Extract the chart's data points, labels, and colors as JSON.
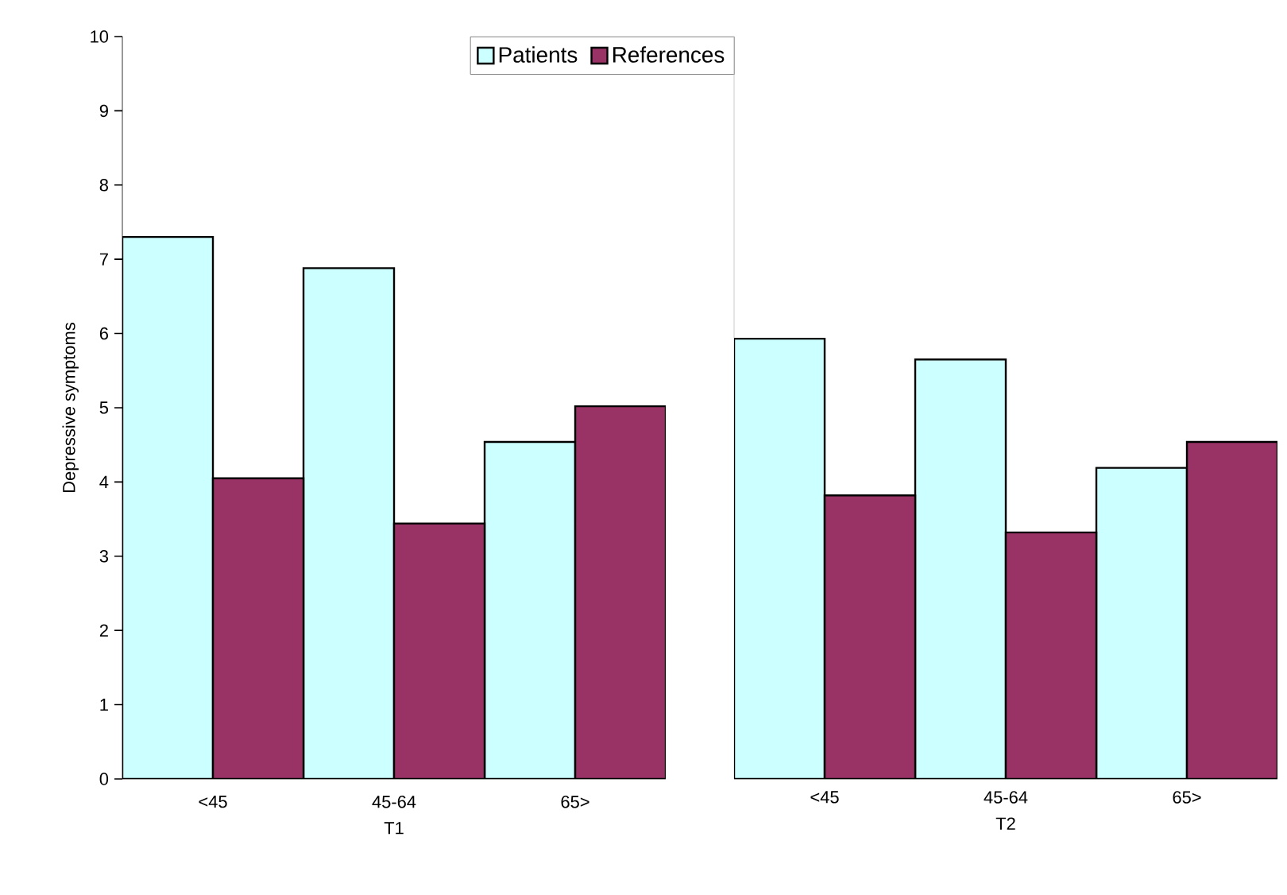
{
  "chart_data": [
    {
      "type": "bar",
      "xlabel": "T1",
      "ylabel": "Depressive symptoms",
      "categories": [
        "<45",
        "45-64",
        "65>"
      ],
      "series": [
        {
          "name": "Patients",
          "color": "#ccffff",
          "values": [
            7.3,
            6.88,
            4.54
          ]
        },
        {
          "name": "References",
          "color": "#993366",
          "values": [
            4.05,
            3.44,
            5.02
          ]
        }
      ],
      "ylim": [
        0,
        10
      ],
      "yticks": [
        0,
        1,
        2,
        3,
        4,
        5,
        6,
        7,
        8,
        9,
        10
      ],
      "legend": "top",
      "grid": false
    },
    {
      "type": "bar",
      "xlabel": "T2",
      "categories": [
        "<45",
        "45-64",
        "65>"
      ],
      "series": [
        {
          "color": "#ccffff",
          "values": [
            5.93,
            5.65,
            4.19
          ]
        },
        {
          "color": "#993366",
          "values": [
            3.82,
            3.32,
            4.54
          ]
        }
      ],
      "ylim": [
        0,
        10
      ],
      "tick_labels": "x",
      "grid": false
    }
  ]
}
